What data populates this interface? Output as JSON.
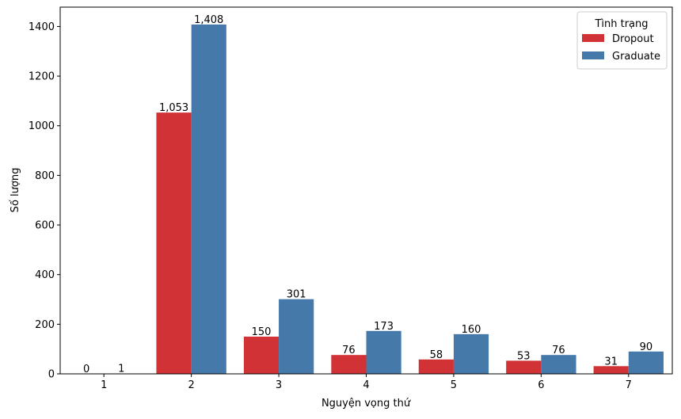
{
  "chart_data": {
    "type": "bar",
    "categories": [
      "1",
      "2",
      "3",
      "4",
      "5",
      "6",
      "7"
    ],
    "series": [
      {
        "name": "Dropout",
        "color": "#d03235",
        "values": [
          0,
          1053,
          150,
          76,
          58,
          53,
          31
        ],
        "labels": [
          "0",
          "1,053",
          "150",
          "76",
          "58",
          "53",
          "31"
        ]
      },
      {
        "name": "Graduate",
        "color": "#4479aa",
        "values": [
          1,
          1408,
          301,
          173,
          160,
          76,
          90
        ],
        "labels": [
          "1",
          "1,408",
          "301",
          "173",
          "160",
          "76",
          "90"
        ]
      }
    ],
    "xlabel": "Nguyện vọng thứ",
    "ylabel": "Số lượng",
    "ylim": [
      0,
      1478
    ],
    "yticks": [
      0,
      200,
      400,
      600,
      800,
      1000,
      1200,
      1400
    ],
    "ytick_labels": [
      "0",
      "200",
      "400",
      "600",
      "800",
      "1000",
      "1200",
      "1400"
    ],
    "grid": false,
    "legend": {
      "title": "Tình trạng",
      "position": "top-right"
    }
  }
}
